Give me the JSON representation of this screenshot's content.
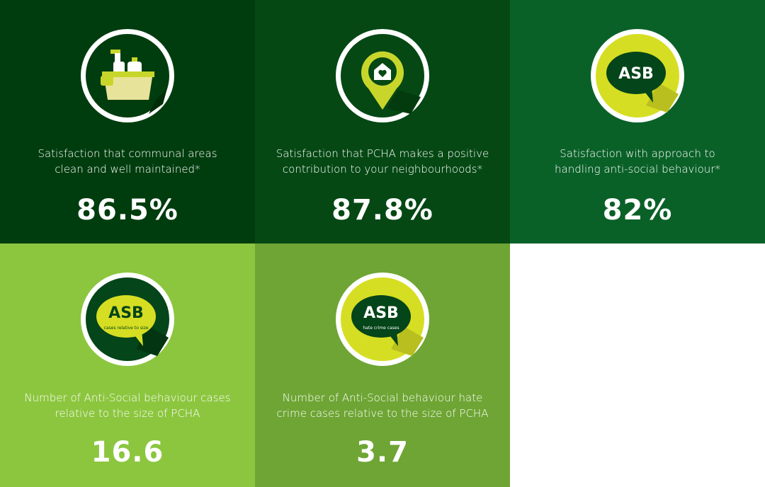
{
  "tiles": [
    {
      "label_lines": [
        "Satisfaction that communal areas",
        "clean and well maintained*"
      ],
      "value": "86.5%"
    },
    {
      "label_lines": [
        "Satisfaction that PCHA makes a positive",
        "contribution to your neighbourhoods*"
      ],
      "value": "87.8%"
    },
    {
      "icon": {
        "text": "ASB"
      },
      "label_lines": [
        "Satisfaction with approach to",
        "handling anti-social behaviour*"
      ],
      "value": "82%"
    },
    {
      "icon": {
        "text": "ASB",
        "caption": "cases relative to size"
      },
      "label_lines": [
        "Number of Anti-Social behaviour cases",
        "relative to the size of PCHA"
      ],
      "value": "16.6"
    },
    {
      "icon": {
        "text": "ASB",
        "caption": "hate crime cases"
      },
      "label_lines": [
        "Number of Anti-Social behaviour hate",
        "crime cases relative to the size of PCHA"
      ],
      "value": "3.7"
    }
  ]
}
